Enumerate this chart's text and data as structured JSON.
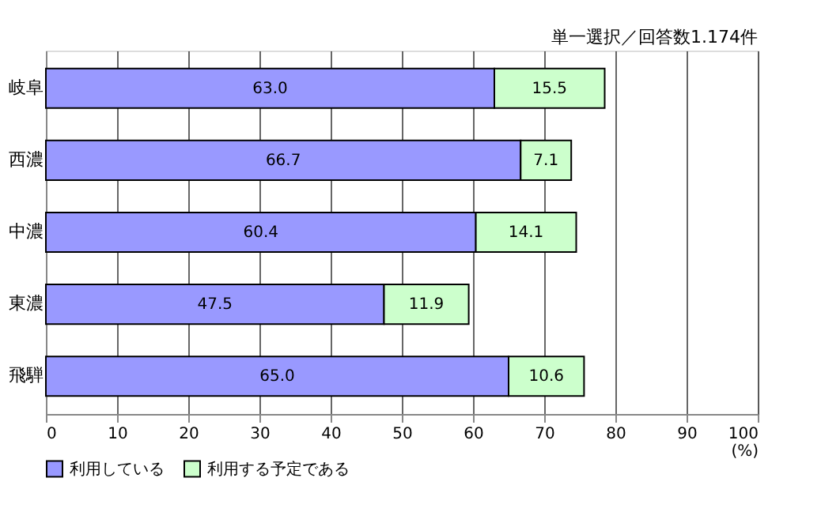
{
  "chart_data": {
    "type": "bar",
    "orientation": "horizontal",
    "stacked": true,
    "categories": [
      "岐阜",
      "西濃",
      "中濃",
      "東濃",
      "飛騨"
    ],
    "series": [
      {
        "name": "利用している",
        "color": "#9999ff",
        "values": [
          63.0,
          66.7,
          60.4,
          47.5,
          65.0
        ],
        "value_labels": [
          "63.0",
          "66.7",
          "60.4",
          "47.5",
          "65.0"
        ]
      },
      {
        "name": "利用する予定である",
        "color": "#ccffcc",
        "values": [
          15.5,
          7.1,
          14.1,
          11.9,
          10.6
        ],
        "value_labels": [
          "15.5",
          "7.1",
          "14.1",
          "11.9",
          "10.6"
        ]
      }
    ],
    "xlim": [
      0,
      100
    ],
    "xticks": [
      0,
      10,
      20,
      30,
      40,
      50,
      60,
      70,
      80,
      90,
      100
    ],
    "xlabel": "(%)",
    "annotations": [
      "単一選択／回答数1.174件"
    ],
    "grid": "x",
    "legend": "bottom"
  }
}
